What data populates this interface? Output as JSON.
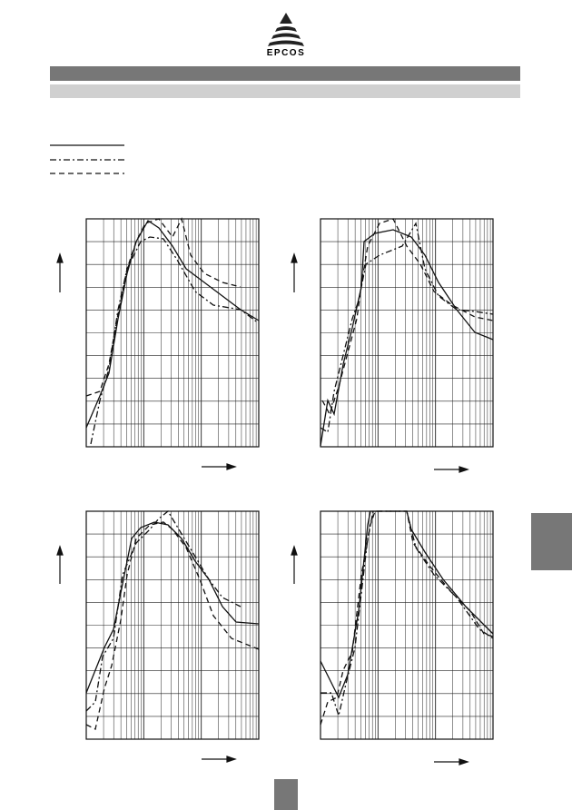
{
  "header": {
    "logo": "EPCOS"
  }
}
